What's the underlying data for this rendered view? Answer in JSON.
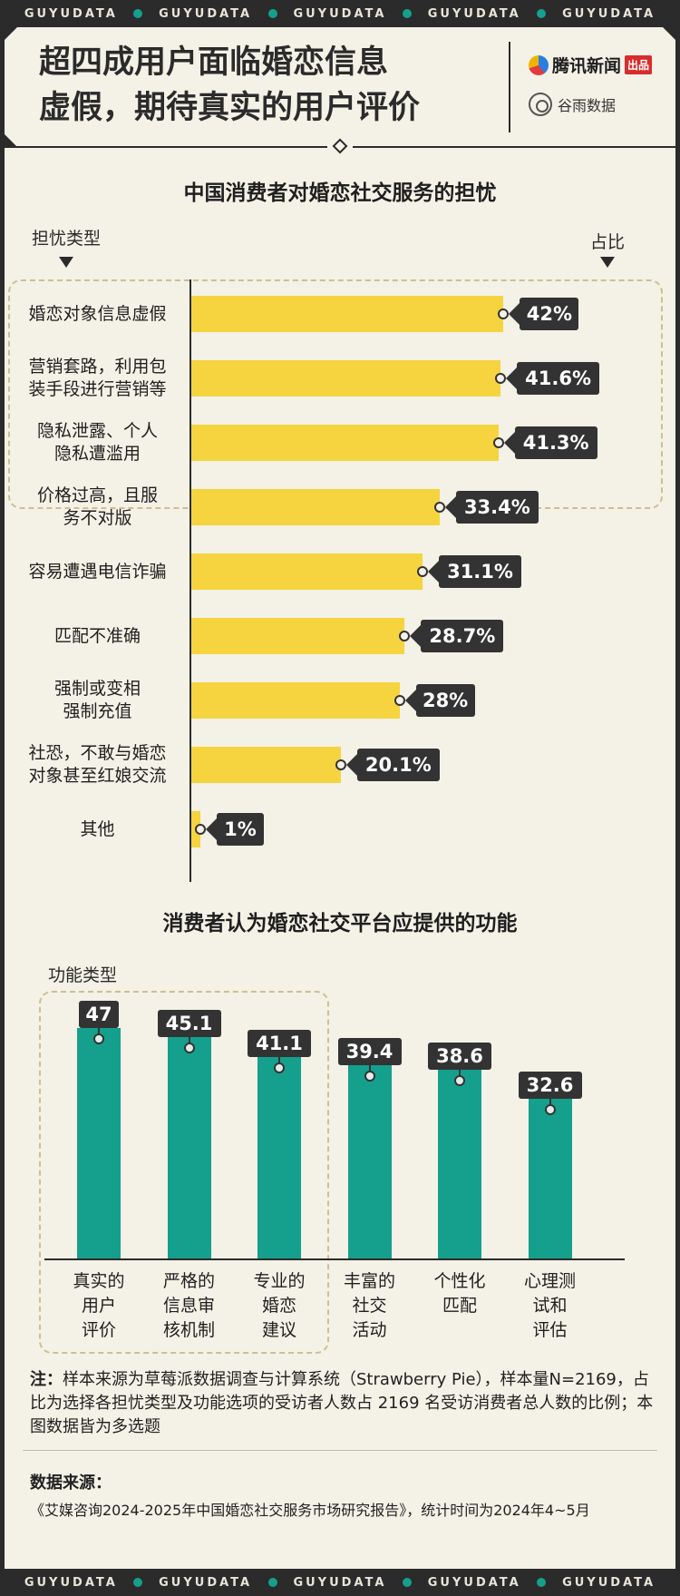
{
  "ribbon": {
    "word": "GUYUDATA"
  },
  "header": {
    "title_line1": "超四成用户面临婚恋信息",
    "title_line2": "虚假，期待真实的用户评价",
    "logo1_text": "腾讯新闻",
    "logo1_tag": "出品",
    "logo2_text": "谷雨数据"
  },
  "colors": {
    "background": "#f4f1e6",
    "dark": "#2b2b2b",
    "yellow_bar": "#f5d43f",
    "teal_bar": "#14a08c",
    "dash": "#cdbf93"
  },
  "chart1": {
    "section_title": "中国消费者对婚恋社交服务的担忧",
    "cat_header": "担忧类型",
    "val_header": "占比"
  },
  "chart2": {
    "section_title": "消费者认为婚恋社交平台应提供的功能",
    "cat_header": "功能类型"
  },
  "chart_data": [
    {
      "type": "bar",
      "orientation": "horizontal",
      "title": "中国消费者对婚恋社交服务的担忧",
      "xlabel": "占比",
      "ylabel": "担忧类型",
      "categories": [
        "婚恋对象信息虚假",
        "营销套路，利用包\n装手段进行营销等",
        "隐私泄露、个人\n隐私遭滥用",
        "价格过高，且服\n务不对版",
        "容易遭遇电信诈骗",
        "匹配不准确",
        "强制或变相\n强制充值",
        "社恐，不敢与婚恋\n对象甚至红娘交流",
        "其他"
      ],
      "values": [
        42,
        41.6,
        41.3,
        33.4,
        31.1,
        28.7,
        28,
        20.1,
        1
      ],
      "value_labels": [
        "42%",
        "41.6%",
        "41.3%",
        "33.4%",
        "31.1%",
        "28.7%",
        "28%",
        "20.1%",
        "1%"
      ],
      "highlighted_top": 3,
      "grid": false
    },
    {
      "type": "bar",
      "orientation": "vertical",
      "title": "消费者认为婚恋社交平台应提供的功能",
      "xlabel": "功能类型",
      "categories": [
        "真实的\n用户\n评价",
        "严格的\n信息审\n核机制",
        "专业的\n婚恋\n建议",
        "丰富的\n社交\n活动",
        "个性化\n匹配",
        "心理测\n试和\n评估"
      ],
      "values": [
        47,
        45.1,
        41.1,
        39.4,
        38.6,
        32.6
      ],
      "value_labels": [
        "47",
        "45.1",
        "41.1",
        "39.4",
        "38.6",
        "32.6"
      ],
      "highlighted_top": 3,
      "grid": false
    }
  ],
  "note": {
    "label": "注：",
    "text": "样本来源为草莓派数据调查与计算系统（Strawberry Pie），样本量N=2169，占比为选择各担忧类型及功能选项的受访者人数占 2169 名受访消费者总人数的比例；本图数据皆为多选题"
  },
  "source": {
    "title": "数据来源：",
    "text": "《艾媒咨询2024-2025年中国婚恋社交服务市场研究报告》，统计时间为2024年4~5月"
  }
}
